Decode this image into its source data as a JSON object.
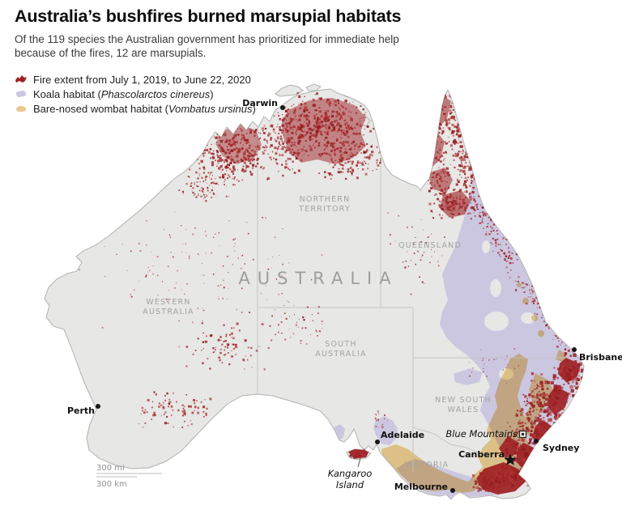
{
  "header": {
    "title": "Australia’s bushfires burned marsupial habitats",
    "subtitle_line1": "Of the 119 species the Australian government has prioritized for immediate help",
    "subtitle_line2": "because of the fires, 12 are marsupials."
  },
  "legend": {
    "items": [
      {
        "pre": "Fire extent from July 1, 2019, to June 22, 2020",
        "sci": "",
        "suf": ""
      },
      {
        "pre": "Koala habitat (",
        "sci": "Phascolarctos cinereus",
        "suf": ")"
      },
      {
        "pre": "Bare-nosed wombat habitat (",
        "sci": "Vombatus ursinus",
        "suf": ")"
      }
    ]
  },
  "map": {
    "country_label": "AUSTRALIA",
    "states": {
      "nt": [
        "NORTHERN",
        "TERRITORY"
      ],
      "wa": [
        "WESTERN",
        "AUSTRALIA"
      ],
      "qld": [
        "QUEENSLAND"
      ],
      "sa": [
        "SOUTH",
        "AUSTRALIA"
      ],
      "nsw": [
        "NEW SOUTH",
        "WALES"
      ],
      "vic": [
        "VICTORIA"
      ]
    },
    "cities": {
      "darwin": "Darwin",
      "perth": "Perth",
      "adelaide": "Adelaide",
      "brisbane": "Brisbane",
      "sydney": "Sydney",
      "canberra": "Canberra",
      "melbourne": "Melbourne"
    },
    "annotations": {
      "blue_mountains": "Blue Mountains",
      "kangaroo_island_line1": "Kangaroo",
      "kangaroo_island_line2": "Island"
    },
    "scale": {
      "mi": "300 mi",
      "km": "300 km"
    }
  },
  "colors": {
    "fire": "#9d2023",
    "koala": "#cbc7e0",
    "wombat": "#f3d494",
    "land": "#e7e7e5",
    "coast": "#b9b9b7",
    "border": "#c2c2c0",
    "state_label": "#a3a3a3"
  }
}
